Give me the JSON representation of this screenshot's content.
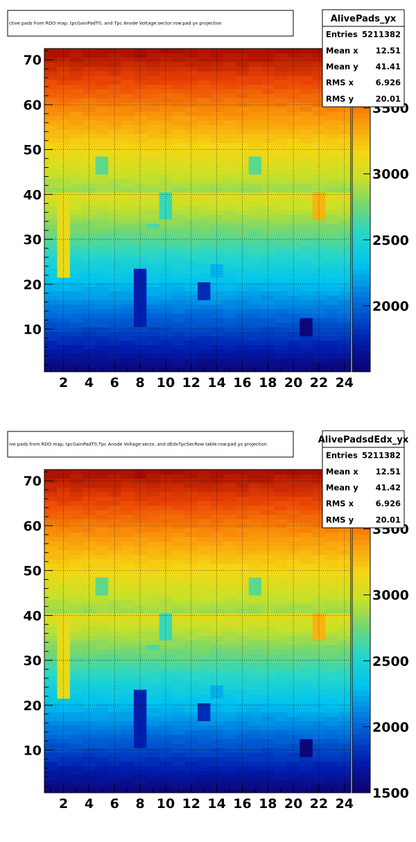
{
  "chart_data": [
    {
      "type": "heatmap",
      "title": "ctive pads from RDO map, tpcGainPadT0,  and Tpc Anode Voltage:sector:row:pad yx projection",
      "xlabel": "",
      "ylabel": "",
      "xlim": [
        0.5,
        24.5
      ],
      "ylim": [
        0.5,
        72.5
      ],
      "x_ticks": [
        "2",
        "4",
        "6",
        "8",
        "10",
        "12",
        "14",
        "16",
        "18",
        "20",
        "22",
        "24"
      ],
      "y_ticks": [
        "10",
        "20",
        "30",
        "40",
        "50",
        "60",
        "70"
      ],
      "colorbar_ticks": [
        "2000",
        "2500",
        "3000",
        "3500"
      ],
      "zlim": [
        1500,
        3950
      ],
      "grid": true,
      "stats": {
        "name": "AlivePads_yx",
        "rows": [
          {
            "label": "Entries",
            "value": "5211382"
          },
          {
            "label": "Mean x",
            "value": "12.51"
          },
          {
            "label": "Mean y",
            "value": "41.41"
          },
          {
            "label": "RMS x",
            "value": "6.926"
          },
          {
            "label": "RMS y",
            "value": "20.01"
          }
        ]
      },
      "anomalies": [
        {
          "x": [
            2,
            2
          ],
          "y": [
            22,
            40
          ],
          "value": 3100
        },
        {
          "x": [
            5,
            5
          ],
          "y": [
            45,
            48
          ],
          "value": 2700
        },
        {
          "x": [
            17,
            17
          ],
          "y": [
            45,
            48
          ],
          "value": 2700
        },
        {
          "x": [
            8,
            8
          ],
          "y": [
            11,
            23
          ],
          "value": 1750
        },
        {
          "x": [
            10,
            10
          ],
          "y": [
            35,
            40
          ],
          "value": 2600
        },
        {
          "x": [
            9,
            9
          ],
          "y": [
            33,
            33
          ],
          "value": 2650
        },
        {
          "x": [
            13,
            13
          ],
          "y": [
            17,
            20
          ],
          "value": 1800
        },
        {
          "x": [
            14,
            14
          ],
          "y": [
            22,
            24
          ],
          "value": 2250
        },
        {
          "x": [
            21,
            21
          ],
          "y": [
            9,
            12
          ],
          "value": 1550
        },
        {
          "x": [
            22,
            22
          ],
          "y": [
            35,
            40
          ],
          "value": 3300
        },
        {
          "x": [
            8,
            8
          ],
          "y": [
            71,
            72
          ],
          "value": 3900
        }
      ]
    },
    {
      "type": "heatmap",
      "title": "ive pads from RDO map, tpcGainPadT0,Tpc Anode Voltage:secto, and dEdxTpcSecRow table:row:pad yx projection",
      "xlabel": "",
      "ylabel": "",
      "xlim": [
        0.5,
        24.5
      ],
      "ylim": [
        0.5,
        72.5
      ],
      "x_ticks": [
        "2",
        "4",
        "6",
        "8",
        "10",
        "12",
        "14",
        "16",
        "18",
        "20",
        "22",
        "24"
      ],
      "y_ticks": [
        "10",
        "20",
        "30",
        "40",
        "50",
        "60",
        "70"
      ],
      "colorbar_ticks": [
        "1500",
        "2000",
        "2500",
        "3000",
        "3500"
      ],
      "zlim": [
        1500,
        3950
      ],
      "grid": true,
      "stats": {
        "name": "AlivePadsdEdx_yx",
        "rows": [
          {
            "label": "Entries",
            "value": "5211382"
          },
          {
            "label": "Mean x",
            "value": "12.51"
          },
          {
            "label": "Mean y",
            "value": "41.42"
          },
          {
            "label": "RMS x",
            "value": "6.926"
          },
          {
            "label": "RMS y",
            "value": "20.01"
          }
        ]
      },
      "anomalies": [
        {
          "x": [
            2,
            2
          ],
          "y": [
            22,
            40
          ],
          "value": 3100
        },
        {
          "x": [
            5,
            5
          ],
          "y": [
            45,
            48
          ],
          "value": 2700
        },
        {
          "x": [
            17,
            17
          ],
          "y": [
            45,
            48
          ],
          "value": 2700
        },
        {
          "x": [
            8,
            8
          ],
          "y": [
            11,
            23
          ],
          "value": 1750
        },
        {
          "x": [
            10,
            10
          ],
          "y": [
            35,
            40
          ],
          "value": 2600
        },
        {
          "x": [
            9,
            9
          ],
          "y": [
            33,
            33
          ],
          "value": 2650
        },
        {
          "x": [
            13,
            13
          ],
          "y": [
            17,
            20
          ],
          "value": 1800
        },
        {
          "x": [
            14,
            14
          ],
          "y": [
            22,
            24
          ],
          "value": 2250
        },
        {
          "x": [
            21,
            21
          ],
          "y": [
            9,
            12
          ],
          "value": 1550
        },
        {
          "x": [
            22,
            22
          ],
          "y": [
            35,
            40
          ],
          "value": 3300
        },
        {
          "x": [
            8,
            8
          ],
          "y": [
            71,
            72
          ],
          "value": 3900
        }
      ]
    }
  ]
}
